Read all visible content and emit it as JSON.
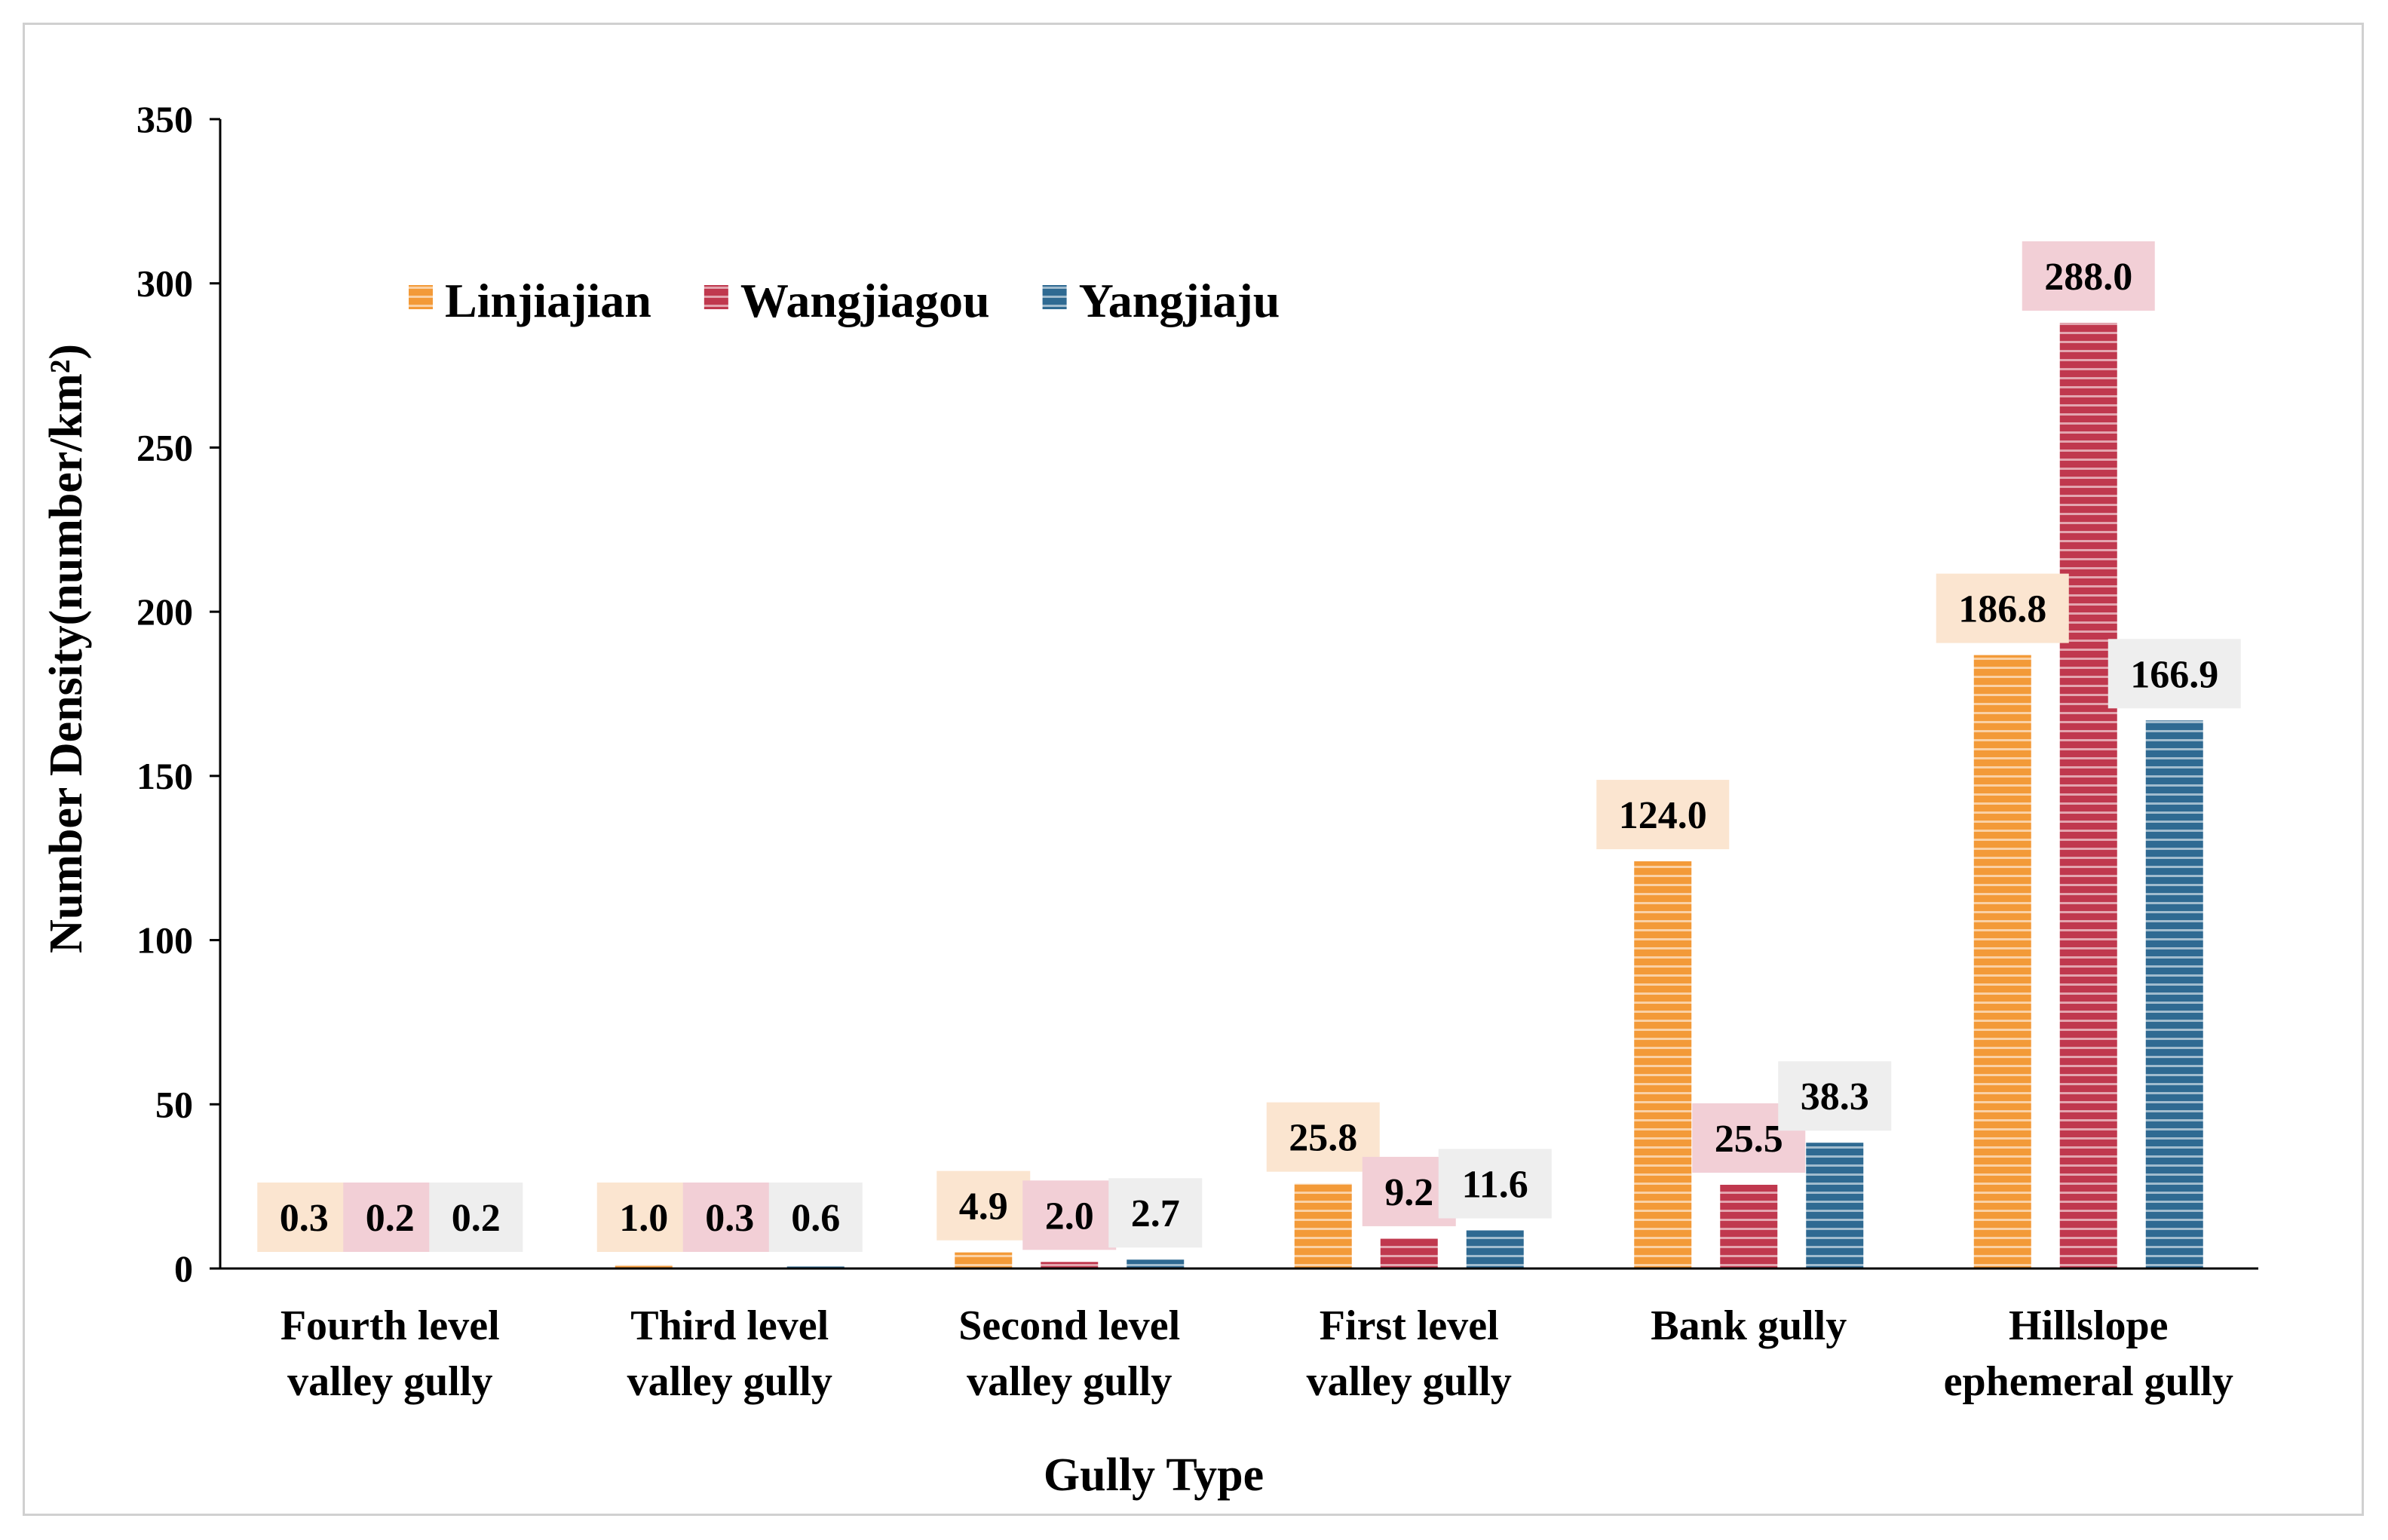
{
  "chart_data": {
    "type": "bar",
    "xlabel": "Gully Type",
    "ylabel": "Number Density(number/km²)",
    "ylim": [
      0,
      350
    ],
    "yticks": [
      0,
      50,
      100,
      150,
      200,
      250,
      300,
      350
    ],
    "legend_position": "top-left",
    "categories": [
      [
        "Fourth level",
        "valley gully"
      ],
      [
        "Third level",
        "valley gully"
      ],
      [
        "Second level",
        "valley gully"
      ],
      [
        "First level",
        "valley gully"
      ],
      [
        "Bank gully"
      ],
      [
        "Hillslope",
        "ephemeral gully"
      ]
    ],
    "series": [
      {
        "name": "Linjiajian",
        "color": "#f39a38",
        "label_bg": "#fbe5d0",
        "values": [
          0.3,
          1.0,
          4.9,
          25.8,
          124.0,
          186.8
        ],
        "labels": [
          "0.3",
          "1.0",
          "4.9",
          "25.8",
          "124.0",
          "186.8"
        ]
      },
      {
        "name": "Wangjiagou",
        "color": "#c0384e",
        "label_bg": "#f2cfd6",
        "values": [
          0.2,
          0.3,
          2.0,
          9.2,
          25.5,
          288.0
        ],
        "labels": [
          "0.2",
          "0.3",
          "2.0",
          "9.2",
          "25.5",
          "288.0"
        ]
      },
      {
        "name": "Yangjiaju",
        "color": "#2f6a92",
        "label_bg": "#eeeeee",
        "values": [
          0.2,
          0.6,
          2.7,
          11.6,
          38.3,
          166.9
        ],
        "labels": [
          "0.2",
          "0.6",
          "2.7",
          "11.6",
          "38.3",
          "166.9"
        ]
      }
    ]
  }
}
